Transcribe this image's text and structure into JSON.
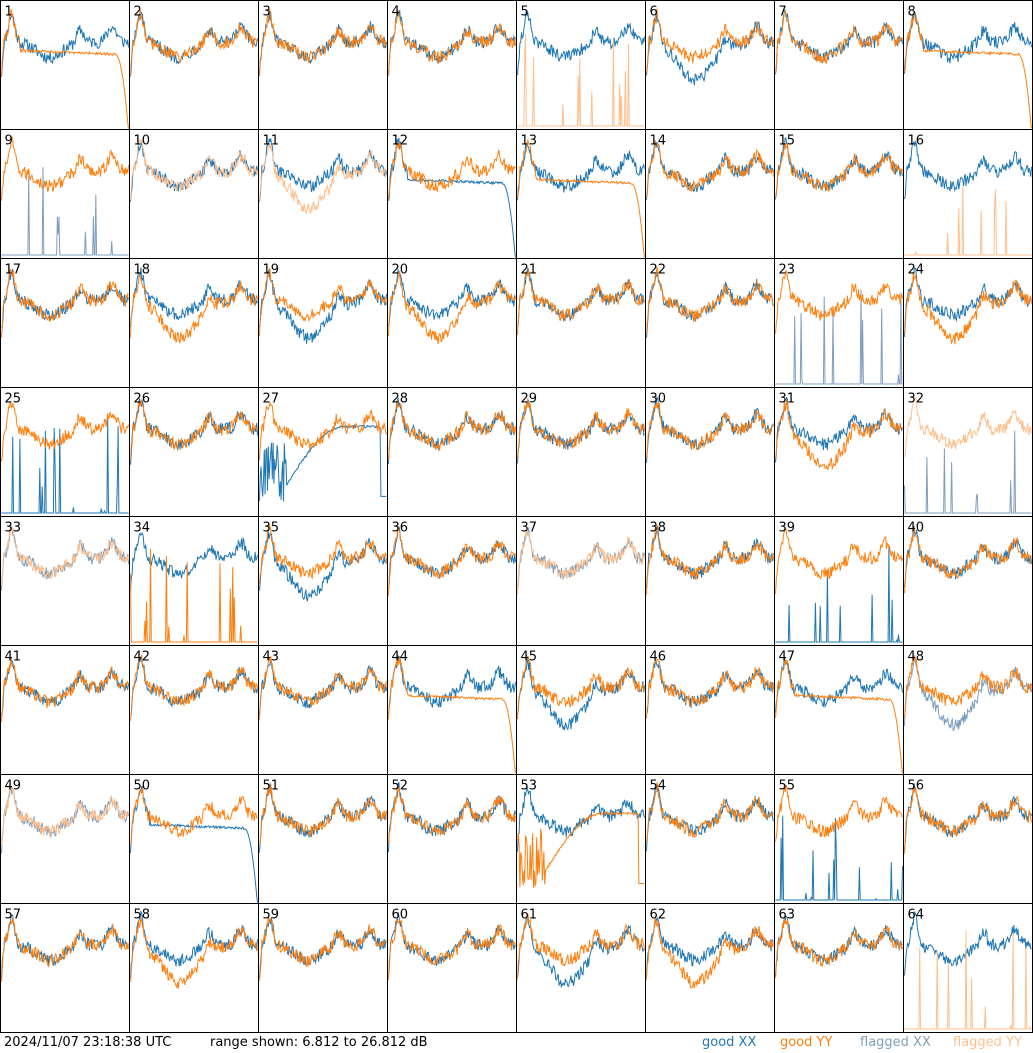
{
  "colors": {
    "good_xx": "#1f77b4",
    "good_yy": "#ff7f0e",
    "flagged_xx": "#7f9fbd",
    "flagged_yy": "#ffbf8c"
  },
  "footer": {
    "timestamp": "2024/11/07 23:18:38 UTC",
    "range": "range shown: 6.812 to 26.812 dB"
  },
  "chart_data": {
    "type": "line",
    "grid": {
      "rows": 8,
      "cols": 8
    },
    "y_range_db": [
      6.812,
      26.812
    ],
    "legend": [
      {
        "name": "good XX",
        "color_key": "good_xx"
      },
      {
        "name": "good YY",
        "color_key": "good_yy"
      },
      {
        "name": "flagged XX",
        "color_key": "flagged_xx"
      },
      {
        "name": "flagged YY",
        "color_key": "flagged_yy"
      }
    ],
    "panels": [
      {
        "id": "1",
        "xx": "good",
        "yy": "good",
        "xx_shape": "normal",
        "yy_shape": "rolloff"
      },
      {
        "id": "2",
        "xx": "good",
        "yy": "good",
        "xx_shape": "normal",
        "yy_shape": "normal"
      },
      {
        "id": "3",
        "xx": "good",
        "yy": "good",
        "xx_shape": "normal",
        "yy_shape": "normal"
      },
      {
        "id": "4",
        "xx": "good",
        "yy": "good",
        "xx_shape": "normal",
        "yy_shape": "normal"
      },
      {
        "id": "5",
        "xx": "good",
        "yy": "flagged",
        "xx_shape": "normal",
        "yy_shape": "spiky"
      },
      {
        "id": "6",
        "xx": "good",
        "yy": "good",
        "xx_shape": "low",
        "yy_shape": "normal"
      },
      {
        "id": "7",
        "xx": "good",
        "yy": "good",
        "xx_shape": "normal",
        "yy_shape": "normal"
      },
      {
        "id": "8",
        "xx": "good",
        "yy": "good",
        "xx_shape": "normal",
        "yy_shape": "rolloff"
      },
      {
        "id": "9",
        "xx": "flagged",
        "yy": "good",
        "xx_shape": "spiky",
        "yy_shape": "normal"
      },
      {
        "id": "10",
        "xx": "good",
        "yy": "flagged",
        "xx_shape": "normal",
        "yy_shape": "normal"
      },
      {
        "id": "11",
        "xx": "good",
        "yy": "flagged",
        "xx_shape": "normal",
        "yy_shape": "low"
      },
      {
        "id": "12",
        "xx": "good",
        "yy": "good",
        "xx_shape": "rolloff",
        "yy_shape": "normal"
      },
      {
        "id": "13",
        "xx": "good",
        "yy": "good",
        "xx_shape": "normal",
        "yy_shape": "rolloff"
      },
      {
        "id": "14",
        "xx": "good",
        "yy": "good",
        "xx_shape": "normal",
        "yy_shape": "normal"
      },
      {
        "id": "15",
        "xx": "good",
        "yy": "good",
        "xx_shape": "normal",
        "yy_shape": "normal"
      },
      {
        "id": "16",
        "xx": "good",
        "yy": "flagged",
        "xx_shape": "normal",
        "yy_shape": "spiky"
      },
      {
        "id": "17",
        "xx": "good",
        "yy": "good",
        "xx_shape": "normal",
        "yy_shape": "normal"
      },
      {
        "id": "18",
        "xx": "good",
        "yy": "good",
        "xx_shape": "normal",
        "yy_shape": "low"
      },
      {
        "id": "19",
        "xx": "good",
        "yy": "good",
        "xx_shape": "low",
        "yy_shape": "normal"
      },
      {
        "id": "20",
        "xx": "good",
        "yy": "good",
        "xx_shape": "normal",
        "yy_shape": "low"
      },
      {
        "id": "21",
        "xx": "good",
        "yy": "good",
        "xx_shape": "normal",
        "yy_shape": "normal"
      },
      {
        "id": "22",
        "xx": "good",
        "yy": "good",
        "xx_shape": "normal",
        "yy_shape": "normal"
      },
      {
        "id": "23",
        "xx": "flagged",
        "yy": "good",
        "xx_shape": "spiky",
        "yy_shape": "normal"
      },
      {
        "id": "24",
        "xx": "good",
        "yy": "good",
        "xx_shape": "normal",
        "yy_shape": "low"
      },
      {
        "id": "25",
        "xx": "good",
        "yy": "good",
        "xx_shape": "spiky",
        "yy_shape": "normal"
      },
      {
        "id": "26",
        "xx": "good",
        "yy": "good",
        "xx_shape": "normal",
        "yy_shape": "normal"
      },
      {
        "id": "27",
        "xx": "good",
        "yy": "good",
        "xx_shape": "hump",
        "yy_shape": "normal"
      },
      {
        "id": "28",
        "xx": "good",
        "yy": "good",
        "xx_shape": "normal",
        "yy_shape": "normal"
      },
      {
        "id": "29",
        "xx": "good",
        "yy": "good",
        "xx_shape": "normal",
        "yy_shape": "normal"
      },
      {
        "id": "30",
        "xx": "good",
        "yy": "good",
        "xx_shape": "normal",
        "yy_shape": "normal"
      },
      {
        "id": "31",
        "xx": "good",
        "yy": "good",
        "xx_shape": "normal",
        "yy_shape": "low"
      },
      {
        "id": "32",
        "xx": "flagged",
        "yy": "flagged",
        "xx_shape": "spiky",
        "yy_shape": "normal"
      },
      {
        "id": "33",
        "xx": "flagged",
        "yy": "flagged",
        "xx_shape": "normal",
        "yy_shape": "normal"
      },
      {
        "id": "34",
        "xx": "good",
        "yy": "good",
        "xx_shape": "normal",
        "yy_shape": "spiky"
      },
      {
        "id": "35",
        "xx": "good",
        "yy": "good",
        "xx_shape": "low",
        "yy_shape": "normal"
      },
      {
        "id": "36",
        "xx": "good",
        "yy": "good",
        "xx_shape": "normal",
        "yy_shape": "normal"
      },
      {
        "id": "37",
        "xx": "flagged",
        "yy": "flagged",
        "xx_shape": "normal",
        "yy_shape": "normal"
      },
      {
        "id": "38",
        "xx": "good",
        "yy": "good",
        "xx_shape": "normal",
        "yy_shape": "normal"
      },
      {
        "id": "39",
        "xx": "good",
        "yy": "good",
        "xx_shape": "spiky",
        "yy_shape": "normal"
      },
      {
        "id": "40",
        "xx": "good",
        "yy": "good",
        "xx_shape": "normal",
        "yy_shape": "normal"
      },
      {
        "id": "41",
        "xx": "good",
        "yy": "good",
        "xx_shape": "normal",
        "yy_shape": "normal"
      },
      {
        "id": "42",
        "xx": "good",
        "yy": "good",
        "xx_shape": "normal",
        "yy_shape": "normal"
      },
      {
        "id": "43",
        "xx": "good",
        "yy": "good",
        "xx_shape": "normal",
        "yy_shape": "normal"
      },
      {
        "id": "44",
        "xx": "good",
        "yy": "good",
        "xx_shape": "normal",
        "yy_shape": "rolloff"
      },
      {
        "id": "45",
        "xx": "good",
        "yy": "good",
        "xx_shape": "low",
        "yy_shape": "normal"
      },
      {
        "id": "46",
        "xx": "good",
        "yy": "good",
        "xx_shape": "normal",
        "yy_shape": "normal"
      },
      {
        "id": "47",
        "xx": "good",
        "yy": "good",
        "xx_shape": "normal",
        "yy_shape": "rolloff"
      },
      {
        "id": "48",
        "xx": "flagged",
        "yy": "good",
        "xx_shape": "low",
        "yy_shape": "normal"
      },
      {
        "id": "49",
        "xx": "flagged",
        "yy": "flagged",
        "xx_shape": "normal",
        "yy_shape": "normal"
      },
      {
        "id": "50",
        "xx": "good",
        "yy": "good",
        "xx_shape": "rolloff",
        "yy_shape": "normal"
      },
      {
        "id": "51",
        "xx": "good",
        "yy": "good",
        "xx_shape": "normal",
        "yy_shape": "normal"
      },
      {
        "id": "52",
        "xx": "good",
        "yy": "good",
        "xx_shape": "normal",
        "yy_shape": "normal"
      },
      {
        "id": "53",
        "xx": "good",
        "yy": "good",
        "xx_shape": "normal",
        "yy_shape": "hump"
      },
      {
        "id": "54",
        "xx": "good",
        "yy": "good",
        "xx_shape": "normal",
        "yy_shape": "normal"
      },
      {
        "id": "55",
        "xx": "good",
        "yy": "good",
        "xx_shape": "spiky",
        "yy_shape": "normal"
      },
      {
        "id": "56",
        "xx": "good",
        "yy": "good",
        "xx_shape": "normal",
        "yy_shape": "normal"
      },
      {
        "id": "57",
        "xx": "good",
        "yy": "good",
        "xx_shape": "normal",
        "yy_shape": "normal"
      },
      {
        "id": "58",
        "xx": "good",
        "yy": "good",
        "xx_shape": "normal",
        "yy_shape": "low"
      },
      {
        "id": "59",
        "xx": "good",
        "yy": "good",
        "xx_shape": "normal",
        "yy_shape": "normal"
      },
      {
        "id": "60",
        "xx": "good",
        "yy": "good",
        "xx_shape": "normal",
        "yy_shape": "normal"
      },
      {
        "id": "61",
        "xx": "good",
        "yy": "good",
        "xx_shape": "low",
        "yy_shape": "normal"
      },
      {
        "id": "62",
        "xx": "good",
        "yy": "good",
        "xx_shape": "normal",
        "yy_shape": "low"
      },
      {
        "id": "63",
        "xx": "good",
        "yy": "good",
        "xx_shape": "normal",
        "yy_shape": "normal"
      },
      {
        "id": "64",
        "xx": "good",
        "yy": "flagged",
        "xx_shape": "normal",
        "yy_shape": "spiky"
      }
    ]
  }
}
